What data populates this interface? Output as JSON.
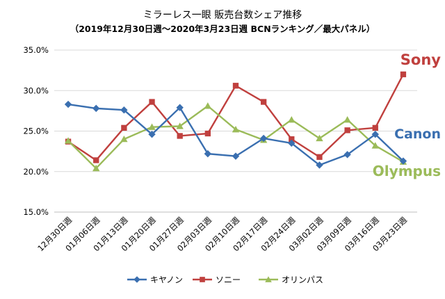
{
  "chart_data": {
    "type": "line",
    "title": "ミラーレス一眼 販売台数シェア推移",
    "subtitle": "（2019年12月30日週〜2020年3月23日週 BCNランキング／最大パネル）",
    "categories": [
      "12月30日週",
      "01月06日週",
      "01月13日週",
      "01月20日週",
      "01月27日週",
      "02月03日週",
      "02月10日週",
      "02月17日週",
      "02月24日週",
      "03月02日週",
      "03月09日週",
      "03月16日週",
      "03月23日週"
    ],
    "ylim": [
      15,
      35
    ],
    "yticks": [
      "15.0%",
      "20.0%",
      "25.0%",
      "30.0%",
      "35.0%"
    ],
    "ytick_values": [
      15,
      20,
      25,
      30,
      35
    ],
    "grid": true,
    "legend_position": "bottom",
    "series": [
      {
        "name": "キヤノン",
        "end_label": "Canon",
        "color": "#3a6fb0",
        "marker": "diamond",
        "values": [
          28.3,
          27.8,
          27.6,
          24.6,
          27.9,
          22.2,
          21.9,
          24.1,
          23.5,
          20.8,
          22.1,
          24.6,
          21.3
        ]
      },
      {
        "name": "ソニー",
        "end_label": "Sony",
        "color": "#c0403e",
        "marker": "square",
        "values": [
          23.7,
          21.4,
          25.4,
          28.6,
          24.4,
          24.7,
          30.6,
          28.6,
          24.0,
          21.8,
          25.1,
          25.4,
          32.0
        ]
      },
      {
        "name": "オリンパス",
        "end_label": "Olympus",
        "color": "#9bbb59",
        "marker": "triangle",
        "values": [
          23.8,
          20.4,
          24.0,
          25.5,
          25.6,
          28.1,
          25.2,
          23.9,
          26.4,
          24.1,
          26.4,
          23.2,
          21.2
        ]
      }
    ]
  }
}
